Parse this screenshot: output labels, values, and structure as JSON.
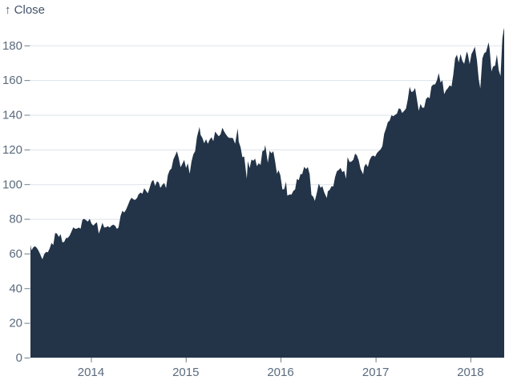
{
  "colors": {
    "background": "#ffffff",
    "area_fill": "#233448",
    "gridline": "#dde3ea",
    "tick_mark": "#6e7e8c",
    "tick_label": "#5b6b7d",
    "title_text": "#43536a"
  },
  "chart_data": {
    "type": "area",
    "title": "↑ Close",
    "ylabel": "Close",
    "xlabel": "",
    "series_name": "Close",
    "legend": "none",
    "grid": true,
    "ylim": [
      0,
      190.04
    ],
    "x_range": [
      "2013-05-13",
      "2018-05-11"
    ],
    "y_tick_values": [
      0,
      20,
      40,
      60,
      80,
      100,
      120,
      140,
      160,
      180
    ],
    "y_tick_labels": [
      "0",
      "20",
      "40",
      "60",
      "80",
      "100",
      "120",
      "140",
      "160",
      "180"
    ],
    "x_tick_years": [
      2014,
      2015,
      2016,
      2017,
      2018
    ],
    "x_tick_labels": [
      "2014",
      "2015",
      "2016",
      "2017",
      "2018"
    ],
    "points": [
      [
        "2013-05-13",
        64.96
      ],
      [
        "2013-05-17",
        61.89
      ],
      [
        "2013-05-24",
        63.59
      ],
      [
        "2013-05-31",
        64.25
      ],
      [
        "2013-06-07",
        63.12
      ],
      [
        "2013-06-14",
        61.43
      ],
      [
        "2013-06-21",
        59.07
      ],
      [
        "2013-06-28",
        56.65
      ],
      [
        "2013-07-05",
        59.63
      ],
      [
        "2013-07-12",
        60.93
      ],
      [
        "2013-07-19",
        60.71
      ],
      [
        "2013-07-26",
        62.99
      ],
      [
        "2013-08-02",
        66.08
      ],
      [
        "2013-08-09",
        64.92
      ],
      [
        "2013-08-16",
        71.76
      ],
      [
        "2013-08-23",
        71.57
      ],
      [
        "2013-08-30",
        69.6
      ],
      [
        "2013-09-06",
        71.17
      ],
      [
        "2013-09-13",
        66.41
      ],
      [
        "2013-09-20",
        66.77
      ],
      [
        "2013-09-27",
        68.96
      ],
      [
        "2013-10-04",
        69.0
      ],
      [
        "2013-10-11",
        70.4
      ],
      [
        "2013-10-18",
        72.7
      ],
      [
        "2013-10-25",
        75.14
      ],
      [
        "2013-11-01",
        74.29
      ],
      [
        "2013-11-08",
        74.37
      ],
      [
        "2013-11-15",
        74.99
      ],
      [
        "2013-11-22",
        74.26
      ],
      [
        "2013-11-29",
        79.44
      ],
      [
        "2013-12-06",
        80.0
      ],
      [
        "2013-12-13",
        79.2
      ],
      [
        "2013-12-20",
        78.43
      ],
      [
        "2013-12-27",
        80.01
      ],
      [
        "2014-01-03",
        77.28
      ],
      [
        "2014-01-10",
        76.13
      ],
      [
        "2014-01-17",
        77.24
      ],
      [
        "2014-01-24",
        78.01
      ],
      [
        "2014-01-31",
        71.51
      ],
      [
        "2014-02-07",
        74.24
      ],
      [
        "2014-02-14",
        77.71
      ],
      [
        "2014-02-21",
        75.04
      ],
      [
        "2014-02-28",
        75.18
      ],
      [
        "2014-03-07",
        75.77
      ],
      [
        "2014-03-14",
        74.96
      ],
      [
        "2014-03-21",
        76.12
      ],
      [
        "2014-03-28",
        76.69
      ],
      [
        "2014-04-04",
        75.97
      ],
      [
        "2014-04-11",
        74.23
      ],
      [
        "2014-04-17",
        74.99
      ],
      [
        "2014-04-25",
        81.71
      ],
      [
        "2014-05-02",
        84.65
      ],
      [
        "2014-05-09",
        83.65
      ],
      [
        "2014-05-16",
        85.36
      ],
      [
        "2014-05-23",
        87.73
      ],
      [
        "2014-05-30",
        90.43
      ],
      [
        "2014-06-06",
        92.22
      ],
      [
        "2014-06-13",
        91.28
      ],
      [
        "2014-06-20",
        90.91
      ],
      [
        "2014-06-27",
        91.98
      ],
      [
        "2014-07-03",
        94.03
      ],
      [
        "2014-07-11",
        95.22
      ],
      [
        "2014-07-18",
        94.43
      ],
      [
        "2014-07-25",
        97.67
      ],
      [
        "2014-08-01",
        96.13
      ],
      [
        "2014-08-08",
        94.74
      ],
      [
        "2014-08-15",
        97.98
      ],
      [
        "2014-08-22",
        101.32
      ],
      [
        "2014-08-29",
        102.5
      ],
      [
        "2014-09-05",
        98.97
      ],
      [
        "2014-09-12",
        101.66
      ],
      [
        "2014-09-19",
        100.96
      ],
      [
        "2014-09-25",
        97.87
      ],
      [
        "2014-10-03",
        99.62
      ],
      [
        "2014-10-10",
        100.73
      ],
      [
        "2014-10-17",
        97.67
      ],
      [
        "2014-10-24",
        105.22
      ],
      [
        "2014-10-31",
        108.0
      ],
      [
        "2014-11-07",
        109.01
      ],
      [
        "2014-11-14",
        114.18
      ],
      [
        "2014-11-21",
        116.47
      ],
      [
        "2014-11-28",
        118.93
      ],
      [
        "2014-12-05",
        115.0
      ],
      [
        "2014-12-12",
        109.73
      ],
      [
        "2014-12-19",
        111.78
      ],
      [
        "2014-12-26",
        113.99
      ],
      [
        "2015-01-02",
        109.33
      ],
      [
        "2015-01-09",
        112.01
      ],
      [
        "2015-01-16",
        105.99
      ],
      [
        "2015-01-23",
        112.98
      ],
      [
        "2015-01-30",
        117.16
      ],
      [
        "2015-02-06",
        118.93
      ],
      [
        "2015-02-13",
        127.08
      ],
      [
        "2015-02-23",
        133.0
      ],
      [
        "2015-02-27",
        128.46
      ],
      [
        "2015-03-06",
        126.6
      ],
      [
        "2015-03-13",
        123.59
      ],
      [
        "2015-03-20",
        125.9
      ],
      [
        "2015-03-27",
        123.25
      ],
      [
        "2015-04-02",
        125.32
      ],
      [
        "2015-04-10",
        127.1
      ],
      [
        "2015-04-17",
        124.75
      ],
      [
        "2015-04-24",
        130.28
      ],
      [
        "2015-05-01",
        128.95
      ],
      [
        "2015-05-08",
        127.62
      ],
      [
        "2015-05-15",
        128.77
      ],
      [
        "2015-05-22",
        132.54
      ],
      [
        "2015-05-29",
        130.28
      ],
      [
        "2015-06-05",
        128.65
      ],
      [
        "2015-06-12",
        127.17
      ],
      [
        "2015-06-19",
        126.6
      ],
      [
        "2015-06-26",
        126.75
      ],
      [
        "2015-07-02",
        126.44
      ],
      [
        "2015-07-10",
        123.28
      ],
      [
        "2015-07-20",
        132.07
      ],
      [
        "2015-07-24",
        124.5
      ],
      [
        "2015-07-31",
        121.3
      ],
      [
        "2015-08-07",
        115.52
      ],
      [
        "2015-08-14",
        115.96
      ],
      [
        "2015-08-24",
        103.12
      ],
      [
        "2015-08-28",
        113.29
      ],
      [
        "2015-09-04",
        109.27
      ],
      [
        "2015-09-11",
        114.21
      ],
      [
        "2015-09-18",
        113.45
      ],
      [
        "2015-09-25",
        114.71
      ],
      [
        "2015-10-02",
        110.38
      ],
      [
        "2015-10-09",
        112.12
      ],
      [
        "2015-10-16",
        111.04
      ],
      [
        "2015-10-23",
        119.08
      ],
      [
        "2015-10-30",
        119.5
      ],
      [
        "2015-11-03",
        122.57
      ],
      [
        "2015-11-13",
        112.34
      ],
      [
        "2015-11-20",
        119.3
      ],
      [
        "2015-11-27",
        117.81
      ],
      [
        "2015-12-04",
        119.03
      ],
      [
        "2015-12-11",
        113.18
      ],
      [
        "2015-12-18",
        106.03
      ],
      [
        "2015-12-24",
        108.03
      ],
      [
        "2015-12-31",
        105.26
      ],
      [
        "2016-01-08",
        96.96
      ],
      [
        "2016-01-15",
        97.13
      ],
      [
        "2016-01-22",
        101.42
      ],
      [
        "2016-01-27",
        93.42
      ],
      [
        "2016-02-05",
        94.02
      ],
      [
        "2016-02-12",
        93.99
      ],
      [
        "2016-02-19",
        96.04
      ],
      [
        "2016-02-26",
        96.91
      ],
      [
        "2016-03-04",
        103.01
      ],
      [
        "2016-03-11",
        102.26
      ],
      [
        "2016-03-18",
        105.92
      ],
      [
        "2016-03-24",
        105.67
      ],
      [
        "2016-04-01",
        109.99
      ],
      [
        "2016-04-08",
        108.66
      ],
      [
        "2016-04-15",
        109.85
      ],
      [
        "2016-04-22",
        105.68
      ],
      [
        "2016-04-29",
        93.74
      ],
      [
        "2016-05-06",
        92.72
      ],
      [
        "2016-05-12",
        90.34
      ],
      [
        "2016-05-20",
        95.22
      ],
      [
        "2016-05-27",
        100.35
      ],
      [
        "2016-06-03",
        97.92
      ],
      [
        "2016-06-10",
        98.83
      ],
      [
        "2016-06-17",
        95.33
      ],
      [
        "2016-06-27",
        92.04
      ],
      [
        "2016-07-01",
        95.89
      ],
      [
        "2016-07-08",
        96.68
      ],
      [
        "2016-07-15",
        98.78
      ],
      [
        "2016-07-22",
        98.66
      ],
      [
        "2016-07-29",
        104.21
      ],
      [
        "2016-08-05",
        107.48
      ],
      [
        "2016-08-12",
        108.18
      ],
      [
        "2016-08-19",
        109.36
      ],
      [
        "2016-08-26",
        106.94
      ],
      [
        "2016-09-02",
        107.73
      ],
      [
        "2016-09-09",
        103.13
      ],
      [
        "2016-09-15",
        115.57
      ],
      [
        "2016-09-23",
        112.71
      ],
      [
        "2016-09-30",
        113.05
      ],
      [
        "2016-10-07",
        114.06
      ],
      [
        "2016-10-14",
        117.63
      ],
      [
        "2016-10-21",
        116.6
      ],
      [
        "2016-10-28",
        113.72
      ],
      [
        "2016-11-04",
        108.84
      ],
      [
        "2016-11-14",
        105.71
      ],
      [
        "2016-11-18",
        110.06
      ],
      [
        "2016-11-25",
        111.79
      ],
      [
        "2016-12-02",
        109.9
      ],
      [
        "2016-12-09",
        113.95
      ],
      [
        "2016-12-16",
        115.97
      ],
      [
        "2016-12-23",
        116.52
      ],
      [
        "2016-12-30",
        115.82
      ],
      [
        "2017-01-06",
        117.91
      ],
      [
        "2017-01-13",
        119.04
      ],
      [
        "2017-01-20",
        120.0
      ],
      [
        "2017-01-27",
        121.95
      ],
      [
        "2017-02-03",
        129.08
      ],
      [
        "2017-02-10",
        132.12
      ],
      [
        "2017-02-17",
        135.72
      ],
      [
        "2017-02-24",
        136.66
      ],
      [
        "2017-03-03",
        139.78
      ],
      [
        "2017-03-10",
        139.14
      ],
      [
        "2017-03-17",
        139.99
      ],
      [
        "2017-03-24",
        140.64
      ],
      [
        "2017-03-31",
        143.66
      ],
      [
        "2017-04-07",
        143.34
      ],
      [
        "2017-04-13",
        141.05
      ],
      [
        "2017-04-21",
        142.27
      ],
      [
        "2017-04-28",
        143.65
      ],
      [
        "2017-05-05",
        148.96
      ],
      [
        "2017-05-12",
        156.1
      ],
      [
        "2017-05-19",
        153.06
      ],
      [
        "2017-05-26",
        153.61
      ],
      [
        "2017-06-02",
        155.45
      ],
      [
        "2017-06-09",
        148.98
      ],
      [
        "2017-06-16",
        142.27
      ],
      [
        "2017-06-23",
        146.28
      ],
      [
        "2017-06-30",
        144.02
      ],
      [
        "2017-07-07",
        144.18
      ],
      [
        "2017-07-14",
        149.04
      ],
      [
        "2017-07-21",
        150.27
      ],
      [
        "2017-07-28",
        149.5
      ],
      [
        "2017-08-04",
        156.39
      ],
      [
        "2017-08-11",
        157.48
      ],
      [
        "2017-08-18",
        157.5
      ],
      [
        "2017-08-25",
        159.86
      ],
      [
        "2017-09-01",
        164.05
      ],
      [
        "2017-09-08",
        158.63
      ],
      [
        "2017-09-15",
        159.88
      ],
      [
        "2017-09-22",
        151.89
      ],
      [
        "2017-09-29",
        154.12
      ],
      [
        "2017-10-06",
        155.3
      ],
      [
        "2017-10-13",
        156.99
      ],
      [
        "2017-10-20",
        156.25
      ],
      [
        "2017-10-27",
        163.05
      ],
      [
        "2017-11-03",
        172.5
      ],
      [
        "2017-11-10",
        174.67
      ],
      [
        "2017-11-17",
        170.15
      ],
      [
        "2017-11-24",
        174.97
      ],
      [
        "2017-12-01",
        171.05
      ],
      [
        "2017-12-08",
        169.37
      ],
      [
        "2017-12-18",
        176.42
      ],
      [
        "2017-12-22",
        175.01
      ],
      [
        "2017-12-29",
        169.23
      ],
      [
        "2018-01-05",
        175.0
      ],
      [
        "2018-01-12",
        177.09
      ],
      [
        "2018-01-18",
        179.26
      ],
      [
        "2018-01-26",
        171.51
      ],
      [
        "2018-02-02",
        160.5
      ],
      [
        "2018-02-08",
        155.15
      ],
      [
        "2018-02-16",
        172.43
      ],
      [
        "2018-02-23",
        175.5
      ],
      [
        "2018-03-02",
        176.21
      ],
      [
        "2018-03-12",
        181.72
      ],
      [
        "2018-03-16",
        178.02
      ],
      [
        "2018-03-23",
        164.94
      ],
      [
        "2018-03-29",
        167.78
      ],
      [
        "2018-04-06",
        168.38
      ],
      [
        "2018-04-13",
        174.73
      ],
      [
        "2018-04-20",
        165.72
      ],
      [
        "2018-04-27",
        162.32
      ],
      [
        "2018-05-04",
        183.83
      ],
      [
        "2018-05-10",
        190.04
      ],
      [
        "2018-05-11",
        188.59
      ]
    ]
  }
}
